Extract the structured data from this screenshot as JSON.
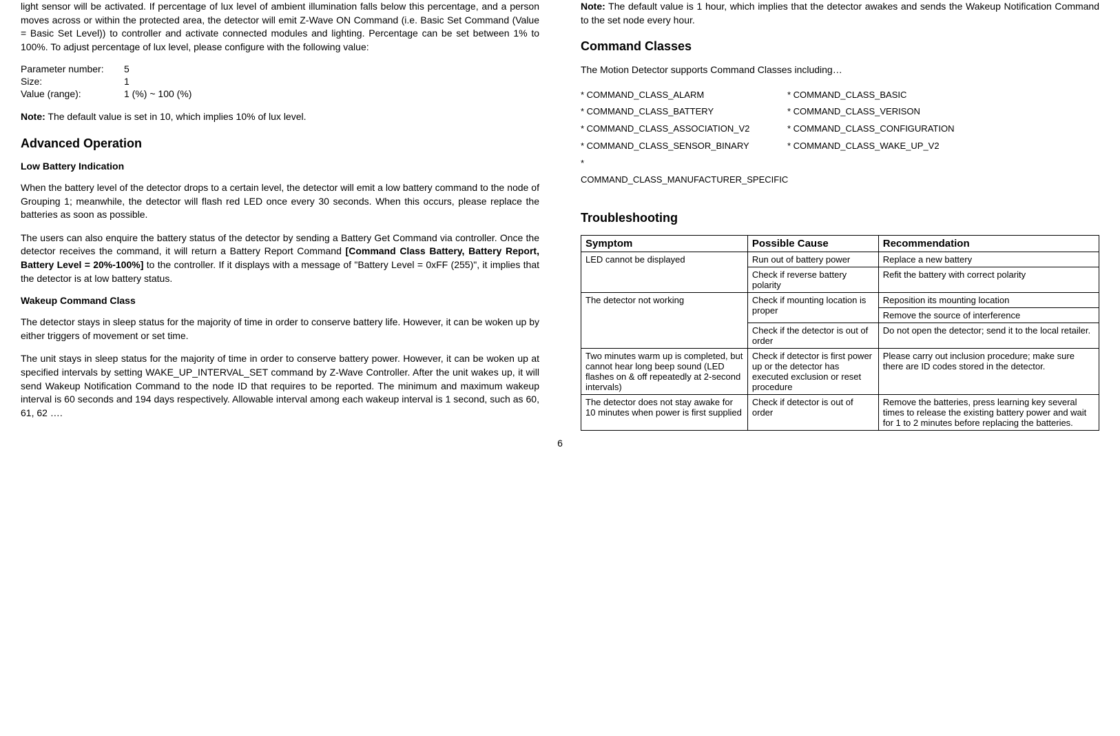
{
  "left": {
    "intro": "light sensor will be activated.   If percentage of lux level of ambient illumination falls below this percentage, and a person moves across or within the protected area, the detector will emit Z-Wave ON Command (i.e. Basic Set Command (Value = Basic Set Level)) to controller and activate connected modules and lighting.   Percentage can be set between 1% to 100%.   To adjust percentage of lux level, please configure with the following value:",
    "params": {
      "pnum_label": "Parameter number:",
      "pnum_val": "5",
      "size_label": "Size:",
      "size_val": "1",
      "range_label": "Value (range):",
      "range_val": "1 (%) ~ 100 (%)"
    },
    "note1_label": "Note:",
    "note1_text": " The default value is set in 10, which implies 10% of lux level.",
    "adv_heading": "Advanced Operation",
    "low_batt_heading": "Low Battery Indication",
    "low_batt_p1": "When the battery level of the detector drops to a certain level, the detector will emit a low battery command to the node of Grouping 1; meanwhile, the detector will flash red LED once every 30 seconds.   When this occurs, please replace the batteries as soon as possible.",
    "low_batt_p2a": "The users can also enquire the battery status of the detector by sending a Battery Get Command via controller.    Once the detector receives the command, it will return a Battery Report Command ",
    "low_batt_p2_bold": "[Command Class Battery, Battery Report, Battery Level = 20%-100%]",
    "low_batt_p2b": " to the controller.  If it displays with a message of \"Battery Level = 0xFF (255)\", it implies that the detector is at low battery status.",
    "wakeup_heading": "Wakeup Command Class",
    "wakeup_p1": "The detector stays in sleep status for the majority of time in order to conserve battery life.    However, it can be woken up by either triggers of movement or set time.",
    "wakeup_p2": "The unit stays in sleep status for the majority of time in order to conserve battery power.  However, it can be woken up at specified intervals by setting WAKE_UP_INTERVAL_SET command by Z-Wave Controller. After the unit wakes up, it will send Wakeup Notification Command to the node ID that requires to be reported. The minimum and maximum wakeup interval is 60 seconds and 194 days respectively. Allowable interval among each wakeup interval is 1 second, such as 60, 61, 62 …."
  },
  "right": {
    "note2_label": "Note:",
    "note2_text": " The default value is 1 hour, which implies that the detector awakes and sends the Wakeup Notification Command to the set node every hour.",
    "cmd_heading": "Command Classes",
    "cmd_intro": "The Motion Detector supports Command Classes including…",
    "cmds": {
      "r1l": "* COMMAND_CLASS_ALARM",
      "r1r": "* COMMAND_CLASS_BASIC",
      "r2l": "* COMMAND_CLASS_BATTERY",
      "r2r": "* COMMAND_CLASS_VERISON",
      "r3l": "* COMMAND_CLASS_ASSOCIATION_V2",
      "r3r": "* COMMAND_CLASS_CONFIGURATION",
      "r4l": "* COMMAND_CLASS_SENSOR_BINARY",
      "r4r": "* COMMAND_CLASS_WAKE_UP_V2",
      "r5l": "* COMMAND_CLASS_MANUFACTURER_SPECIFIC"
    },
    "trouble_heading": "Troubleshooting",
    "table": {
      "h1": "Symptom",
      "h2": "Possible Cause",
      "h3": "Recommendation",
      "rows": [
        {
          "s": "LED cannot be displayed",
          "c": "Run out of battery power",
          "r": "Replace a new battery",
          "srow": 2
        },
        {
          "s": "",
          "c": "Check if reverse battery polarity",
          "r": "Refit the battery with correct polarity"
        },
        {
          "s": "The detector not working",
          "c": "Check if mounting location is proper",
          "r": "Reposition its mounting location",
          "srow": 3,
          "crow": 2
        },
        {
          "s": "",
          "c": "",
          "r": "Remove the source of interference"
        },
        {
          "s": "",
          "c": "Check if the detector is out of order",
          "r": "Do not open the detector; send it to the local retailer."
        },
        {
          "s": "Two minutes warm up is completed, but cannot hear long beep sound (LED flashes on & off repeatedly at 2-second intervals)",
          "c": "Check if detector is first power up or the detector has executed exclusion or reset procedure",
          "r": "Please carry out inclusion procedure; make sure there are ID codes stored in the detector."
        },
        {
          "s": "The detector does not stay awake for 10 minutes when power is first supplied",
          "c": "Check if detector is out of order",
          "r": "Remove the batteries, press learning key several times to release the existing battery power and wait for 1 to 2 minutes before replacing the batteries."
        }
      ]
    }
  },
  "page_num": "6"
}
